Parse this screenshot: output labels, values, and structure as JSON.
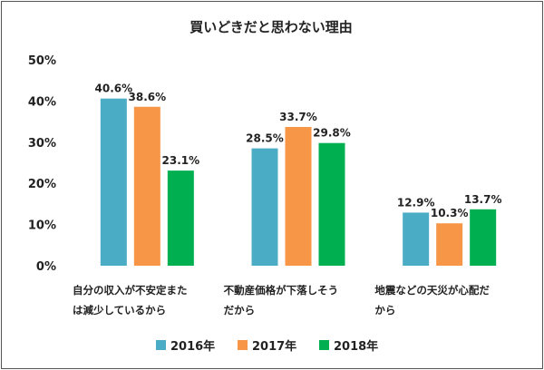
{
  "chart_data": {
    "type": "bar",
    "title": "買いどきだと思わない理由",
    "categories": [
      [
        "自分の収入が不安定また",
        "は減少しているから"
      ],
      [
        "不動産価格が下落しそう",
        "だから"
      ],
      [
        "地震などの天災が心配だ",
        "から"
      ]
    ],
    "series": [
      {
        "name": "2016年",
        "color": "#4bacc6",
        "values": [
          40.6,
          28.5,
          12.9
        ],
        "labels": [
          "40.6%",
          "28.5%",
          "12.9%"
        ]
      },
      {
        "name": "2017年",
        "color": "#f79646",
        "values": [
          38.6,
          33.7,
          10.3
        ],
        "labels": [
          "38.6%",
          "33.7%",
          "10.3%"
        ]
      },
      {
        "name": "2018年",
        "color": "#00b050",
        "values": [
          23.1,
          29.8,
          13.7
        ],
        "labels": [
          "23.1%",
          "29.8%",
          "13.7%"
        ]
      }
    ],
    "yticks": [
      "0%",
      "10%",
      "20%",
      "30%",
      "40%",
      "50%"
    ],
    "ylim": [
      0,
      50
    ],
    "grid": false,
    "legend_position": "bottom"
  }
}
